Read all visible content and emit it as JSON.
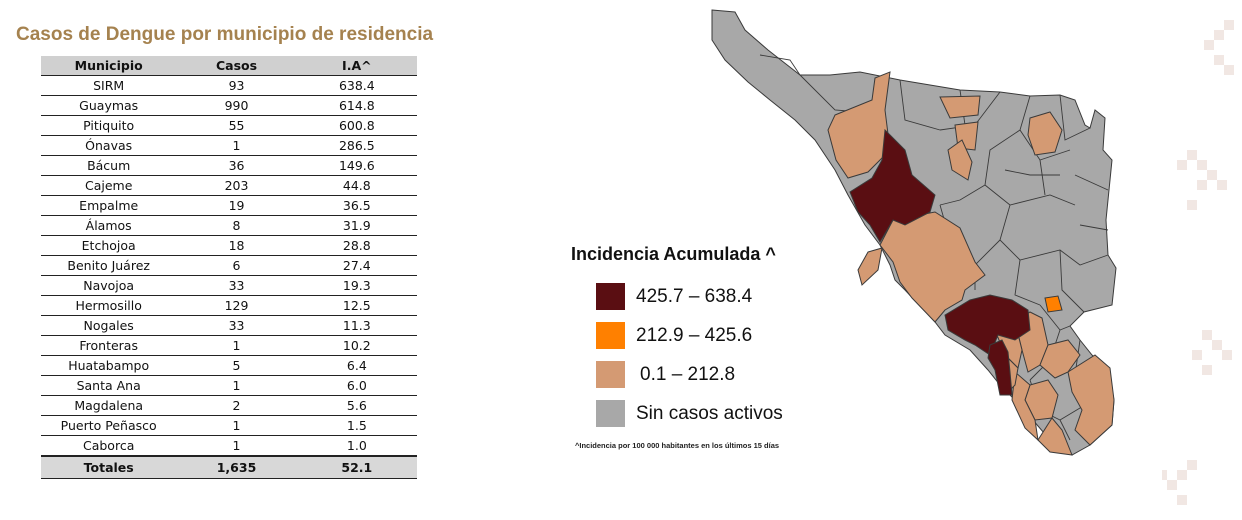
{
  "title": "Casos de Dengue por municipio de residencia",
  "table": {
    "headers": [
      "Municipio",
      "Casos",
      "I.A^"
    ],
    "rows": [
      {
        "municipio": "SIRM",
        "casos": "93",
        "ia": "638.4"
      },
      {
        "municipio": "Guaymas",
        "casos": "990",
        "ia": "614.8"
      },
      {
        "municipio": "Pitiquito",
        "casos": "55",
        "ia": "600.8"
      },
      {
        "municipio": "Ónavas",
        "casos": "1",
        "ia": "286.5"
      },
      {
        "municipio": "Bácum",
        "casos": "36",
        "ia": "149.6"
      },
      {
        "municipio": "Cajeme",
        "casos": "203",
        "ia": "44.8"
      },
      {
        "municipio": "Empalme",
        "casos": "19",
        "ia": "36.5"
      },
      {
        "municipio": "Álamos",
        "casos": "8",
        "ia": "31.9"
      },
      {
        "municipio": "Etchojoa",
        "casos": "18",
        "ia": "28.8"
      },
      {
        "municipio": "Benito Juárez",
        "casos": "6",
        "ia": "27.4"
      },
      {
        "municipio": "Navojoa",
        "casos": "33",
        "ia": "19.3"
      },
      {
        "municipio": "Hermosillo",
        "casos": "129",
        "ia": "12.5"
      },
      {
        "municipio": "Nogales",
        "casos": "33",
        "ia": "11.3"
      },
      {
        "municipio": "Fronteras",
        "casos": "1",
        "ia": "10.2"
      },
      {
        "municipio": "Huatabampo",
        "casos": "5",
        "ia": "6.4"
      },
      {
        "municipio": "Santa Ana",
        "casos": "1",
        "ia": "6.0"
      },
      {
        "municipio": "Magdalena",
        "casos": "2",
        "ia": "5.6"
      },
      {
        "municipio": "Puerto Peñasco",
        "casos": "1",
        "ia": "1.5"
      },
      {
        "municipio": "Caborca",
        "casos": "1",
        "ia": "1.0"
      }
    ],
    "totals": {
      "label": "Totales",
      "casos": "1,635",
      "ia": "52.1"
    }
  },
  "legend": {
    "title": "Incidencia Acumulada ^",
    "items": [
      {
        "label": "425.7 – 638.4",
        "color": "#5a0e12"
      },
      {
        "label": "212.9 – 425.6",
        "color": "#ff8000"
      },
      {
        "label": "0.1 – 212.8",
        "color": "#d49a73"
      },
      {
        "label": "Sin casos activos",
        "color": "#a8a8a8"
      }
    ]
  },
  "footnote": "^Incidencia por 100 000 habitantes en los últimos 15 días",
  "colors": {
    "gray": "#a8a8a8",
    "dark": "#5a0e12",
    "orange": "#ff8000",
    "tan": "#d49a73",
    "title": "#a5824f",
    "border": "#3a3a3a"
  }
}
